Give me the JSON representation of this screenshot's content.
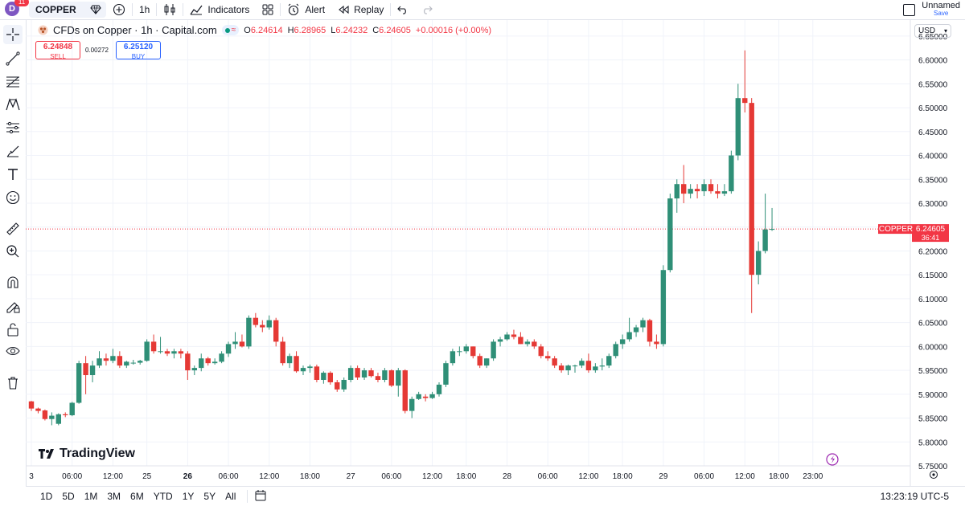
{
  "topbar": {
    "avatar_letter": "D",
    "avatar_badge": "11",
    "symbol": "COPPER",
    "interval": "1h",
    "indicators_label": "Indicators",
    "alert_label": "Alert",
    "replay_label": "Replay",
    "layout_name": "Unnamed",
    "save_label": "Save"
  },
  "left_toolbar": {
    "icons": [
      "crosshair-icon",
      "trend-line-icon",
      "fib-icon",
      "pattern-icon",
      "forecast-icon",
      "brush-icon",
      "text-icon",
      "emoji-icon",
      "ruler-icon",
      "zoom-in-icon",
      "magnet-icon",
      "lock-drawing-icon",
      "lock-icon",
      "eye-icon",
      "trash-icon"
    ]
  },
  "legend": {
    "title": "CFDs on Copper · 1h · Capital.com",
    "open_label": "O",
    "open": "6.24614",
    "high_label": "H",
    "high": "6.28965",
    "low_label": "L",
    "low": "6.24232",
    "close_label": "C",
    "close": "6.24605",
    "change": "+0.00016 (+0.00%)"
  },
  "trade": {
    "sell_price": "6.24848",
    "sell_label": "SELL",
    "spread": "0.00272",
    "buy_price": "6.25120",
    "buy_label": "BUY"
  },
  "currency": "USD",
  "price_label": {
    "symbol": "COPPER",
    "price": "6.24605",
    "countdown": "36:41"
  },
  "brand": "TradingView",
  "colors": {
    "up": "#26a69a",
    "up_body": "#2f8f77",
    "down": "#f23645",
    "down_body": "#e53935",
    "grid": "#f0f3fa",
    "accent": "#2962ff"
  },
  "bottombar": {
    "ranges": [
      "1D",
      "5D",
      "1M",
      "3M",
      "6M",
      "YTD",
      "1Y",
      "5Y",
      "All"
    ],
    "clock": "13:23:19 UTC-5"
  },
  "chart_data": {
    "type": "candlestick",
    "ylim": [
      5.75,
      6.67
    ],
    "y_ticks": [
      "6.65000",
      "6.60000",
      "6.55000",
      "6.50000",
      "6.45000",
      "6.40000",
      "6.35000",
      "6.30000",
      "6.25000",
      "6.20000",
      "6.15000",
      "6.10000",
      "6.05000",
      "6.00000",
      "5.95000",
      "5.90000",
      "5.85000",
      "5.80000",
      "5.75000"
    ],
    "x_ticks": [
      {
        "label": "3",
        "i": 0
      },
      {
        "label": "06:00",
        "i": 6
      },
      {
        "label": "12:00",
        "i": 12
      },
      {
        "label": "25",
        "i": 17
      },
      {
        "label": "26",
        "i": 23,
        "bold": true
      },
      {
        "label": "06:00",
        "i": 29
      },
      {
        "label": "12:00",
        "i": 35
      },
      {
        "label": "18:00",
        "i": 41
      },
      {
        "label": "27",
        "i": 47
      },
      {
        "label": "06:00",
        "i": 53
      },
      {
        "label": "12:00",
        "i": 59
      },
      {
        "label": "18:00",
        "i": 64
      },
      {
        "label": "28",
        "i": 70
      },
      {
        "label": "06:00",
        "i": 76
      },
      {
        "label": "12:00",
        "i": 82
      },
      {
        "label": "18:00",
        "i": 87
      },
      {
        "label": "29",
        "i": 93
      },
      {
        "label": "06:00",
        "i": 99
      },
      {
        "label": "12:00",
        "i": 105
      },
      {
        "label": "18:00",
        "i": 110
      },
      {
        "label": "23:00",
        "i": 115
      }
    ],
    "candles": [
      [
        5.885,
        5.886,
        5.865,
        5.87
      ],
      [
        5.87,
        5.872,
        5.86,
        5.865
      ],
      [
        5.866,
        5.868,
        5.845,
        5.848
      ],
      [
        5.848,
        5.862,
        5.835,
        5.855
      ],
      [
        5.838,
        5.86,
        5.835,
        5.858
      ],
      [
        5.858,
        5.862,
        5.852,
        5.856
      ],
      [
        5.856,
        5.884,
        5.854,
        5.882
      ],
      [
        5.882,
        5.97,
        5.88,
        5.965
      ],
      [
        5.965,
        5.98,
        5.9,
        5.94
      ],
      [
        5.94,
        5.97,
        5.925,
        5.96
      ],
      [
        5.96,
        5.99,
        5.955,
        5.975
      ],
      [
        5.975,
        5.985,
        5.96,
        5.97
      ],
      [
        5.97,
        5.995,
        5.965,
        5.98
      ],
      [
        5.98,
        5.99,
        5.955,
        5.96
      ],
      [
        5.96,
        5.97,
        5.955,
        5.968
      ],
      [
        5.965,
        5.972,
        5.962,
        5.966
      ],
      [
        5.966,
        5.972,
        5.962,
        5.97
      ],
      [
        5.97,
        6.015,
        5.968,
        6.01
      ],
      [
        6.01,
        6.025,
        5.985,
        5.99
      ],
      [
        5.99,
        6.02,
        5.985,
        5.99
      ],
      [
        5.99,
        5.995,
        5.98,
        5.985
      ],
      [
        5.985,
        5.995,
        5.975,
        5.99
      ],
      [
        5.99,
        5.995,
        5.975,
        5.985
      ],
      [
        5.985,
        5.99,
        5.93,
        5.95
      ],
      [
        5.95,
        5.96,
        5.94,
        5.955
      ],
      [
        5.955,
        5.985,
        5.948,
        5.975
      ],
      [
        5.975,
        5.978,
        5.96,
        5.965
      ],
      [
        5.965,
        5.975,
        5.962,
        5.968
      ],
      [
        5.968,
        5.99,
        5.965,
        5.985
      ],
      [
        5.985,
        6.01,
        5.978,
        6.005
      ],
      [
        6.005,
        6.03,
        5.995,
        6.01
      ],
      [
        6.01,
        6.025,
        5.998,
        6.0
      ],
      [
        6.0,
        6.065,
        5.995,
        6.06
      ],
      [
        6.06,
        6.07,
        6.04,
        6.045
      ],
      [
        6.045,
        6.055,
        6.03,
        6.04
      ],
      [
        6.04,
        6.065,
        6.035,
        6.055
      ],
      [
        6.055,
        6.06,
        6.0,
        6.01
      ],
      [
        6.01,
        6.02,
        5.96,
        5.965
      ],
      [
        5.965,
        5.985,
        5.955,
        5.98
      ],
      [
        5.98,
        5.99,
        5.945,
        5.948
      ],
      [
        5.948,
        5.96,
        5.94,
        5.955
      ],
      [
        5.955,
        5.962,
        5.945,
        5.958
      ],
      [
        5.958,
        5.962,
        5.925,
        5.93
      ],
      [
        5.93,
        5.948,
        5.922,
        5.945
      ],
      [
        5.945,
        5.948,
        5.92,
        5.925
      ],
      [
        5.925,
        5.93,
        5.905,
        5.91
      ],
      [
        5.91,
        5.935,
        5.905,
        5.93
      ],
      [
        5.93,
        5.96,
        5.925,
        5.955
      ],
      [
        5.955,
        5.96,
        5.93,
        5.935
      ],
      [
        5.935,
        5.955,
        5.93,
        5.95
      ],
      [
        5.95,
        5.955,
        5.935,
        5.938
      ],
      [
        5.938,
        5.945,
        5.925,
        5.93
      ],
      [
        5.93,
        5.955,
        5.925,
        5.95
      ],
      [
        5.95,
        5.952,
        5.915,
        5.918
      ],
      [
        5.918,
        5.955,
        5.895,
        5.95
      ],
      [
        5.95,
        5.952,
        5.86,
        5.865
      ],
      [
        5.865,
        5.895,
        5.85,
        5.89
      ],
      [
        5.89,
        5.905,
        5.888,
        5.9
      ],
      [
        5.895,
        5.9,
        5.885,
        5.892
      ],
      [
        5.892,
        5.905,
        5.89,
        5.9
      ],
      [
        5.9,
        5.925,
        5.895,
        5.92
      ],
      [
        5.92,
        5.97,
        5.915,
        5.965
      ],
      [
        5.965,
        5.995,
        5.96,
        5.99
      ],
      [
        5.99,
        6.0,
        5.98,
        5.99
      ],
      [
        5.99,
        6.005,
        5.985,
        6.0
      ],
      [
        6.0,
        6.0,
        5.975,
        5.98
      ],
      [
        5.98,
        5.985,
        5.955,
        5.96
      ],
      [
        5.96,
        5.975,
        5.955,
        5.975
      ],
      [
        5.975,
        6.015,
        5.97,
        6.01
      ],
      [
        6.01,
        6.02,
        6.0,
        6.015
      ],
      [
        6.015,
        6.03,
        6.012,
        6.025
      ],
      [
        6.025,
        6.035,
        6.015,
        6.02
      ],
      [
        6.02,
        6.03,
        6.005,
        6.005
      ],
      [
        6.005,
        6.015,
        6.0,
        6.01
      ],
      [
        6.01,
        6.015,
        5.995,
        6.0
      ],
      [
        6.0,
        6.005,
        5.975,
        5.98
      ],
      [
        5.98,
        5.99,
        5.97,
        5.975
      ],
      [
        5.975,
        5.98,
        5.955,
        5.96
      ],
      [
        5.96,
        5.965,
        5.945,
        5.95
      ],
      [
        5.95,
        5.962,
        5.94,
        5.96
      ],
      [
        5.96,
        5.962,
        5.945,
        5.96
      ],
      [
        5.96,
        5.975,
        5.955,
        5.97
      ],
      [
        5.97,
        5.985,
        5.945,
        5.95
      ],
      [
        5.95,
        5.965,
        5.945,
        5.958
      ],
      [
        5.958,
        5.975,
        5.95,
        5.96
      ],
      [
        5.96,
        5.985,
        5.955,
        5.98
      ],
      [
        5.98,
        6.01,
        5.975,
        6.005
      ],
      [
        6.005,
        6.025,
        5.995,
        6.015
      ],
      [
        6.015,
        6.06,
        6.01,
        6.03
      ],
      [
        6.03,
        6.045,
        6.02,
        6.04
      ],
      [
        6.04,
        6.06,
        6.03,
        6.055
      ],
      [
        6.055,
        6.058,
        6.0,
        6.01
      ],
      [
        6.01,
        6.025,
        5.995,
        6.005
      ],
      [
        6.005,
        6.17,
        6.0,
        6.16
      ],
      [
        6.16,
        6.32,
        6.155,
        6.31
      ],
      [
        6.31,
        6.35,
        6.28,
        6.34
      ],
      [
        6.34,
        6.38,
        6.3,
        6.32
      ],
      [
        6.32,
        6.34,
        6.31,
        6.33
      ],
      [
        6.33,
        6.34,
        6.31,
        6.325
      ],
      [
        6.325,
        6.35,
        6.315,
        6.34
      ],
      [
        6.34,
        6.35,
        6.32,
        6.325
      ],
      [
        6.325,
        6.34,
        6.31,
        6.32
      ],
      [
        6.32,
        6.34,
        6.315,
        6.325
      ],
      [
        6.325,
        6.41,
        6.32,
        6.4
      ],
      [
        6.4,
        6.55,
        6.39,
        6.52
      ],
      [
        6.52,
        6.62,
        6.49,
        6.51
      ],
      [
        6.51,
        6.52,
        6.07,
        6.15
      ],
      [
        6.15,
        6.22,
        6.13,
        6.2
      ],
      [
        6.2,
        6.32,
        6.195,
        6.245
      ],
      [
        6.246,
        6.29,
        6.242,
        6.246
      ]
    ]
  }
}
